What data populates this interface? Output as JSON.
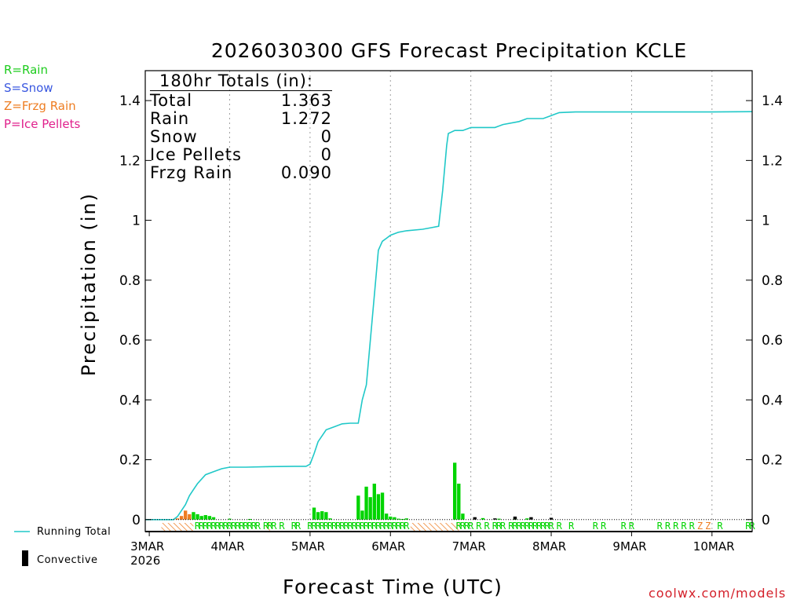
{
  "legend_types": [
    {
      "label": "R=Rain",
      "color": "#1ecc1e"
    },
    {
      "label": "S=Snow",
      "color": "#3a58e0"
    },
    {
      "label": "Z=Frzg Rain",
      "color": "#ee7d22"
    },
    {
      "label": "P=Ice Pellets",
      "color": "#e0208c"
    }
  ],
  "totals_box": {
    "header": "180hr Totals (in):",
    "rows": [
      {
        "label": "Total",
        "value": "1.363"
      },
      {
        "label": "Rain",
        "value": "1.272"
      },
      {
        "label": "Snow",
        "value": "0"
      },
      {
        "label": "Ice Pellets",
        "value": "0"
      },
      {
        "label": "Frzg Rain",
        "value": "0.090"
      }
    ]
  },
  "bottom_legend": {
    "running_total": "Running Total",
    "convective": "Convective"
  },
  "source_credit": "coolwx.com/models",
  "colors": {
    "running_total": "#20c8c8",
    "rain": "#00d400",
    "freezing_rain": "#ee7d22",
    "convective": "#000000",
    "grid": "#a0a0a0"
  },
  "chart_data": {
    "type": "bar",
    "title": "2026030300 GFS Forecast Precipitation KCLE",
    "xlabel": "Forecast Time (UTC)",
    "ylabel": "Precipitation (in)",
    "xlim_days": [
      -0.05,
      7.5
    ],
    "ylim": [
      -0.04,
      1.5
    ],
    "y_ticks": [
      0,
      0.2,
      0.4,
      0.6,
      0.8,
      1,
      1.2,
      1.4
    ],
    "y_tick_labels": [
      "0",
      "0.2",
      "0.4",
      "0.6",
      "0.8",
      "1",
      "1.2",
      "1.4"
    ],
    "x_ticks": [
      {
        "day": 0,
        "label": "3MAR",
        "sublabel": "2026"
      },
      {
        "day": 1,
        "label": "4MAR"
      },
      {
        "day": 2,
        "label": "5MAR"
      },
      {
        "day": 3,
        "label": "6MAR"
      },
      {
        "day": 4,
        "label": "7MAR"
      },
      {
        "day": 5,
        "label": "8MAR"
      },
      {
        "day": 6,
        "label": "9MAR"
      },
      {
        "day": 7,
        "label": "10MAR"
      }
    ],
    "running_total": {
      "name": "Running Total",
      "x_days": [
        -0.05,
        0.3,
        0.35,
        0.4,
        0.45,
        0.5,
        0.55,
        0.6,
        0.7,
        0.8,
        0.9,
        1.0,
        1.2,
        1.5,
        1.8,
        1.95,
        2.0,
        2.05,
        2.1,
        2.2,
        2.3,
        2.4,
        2.5,
        2.6,
        2.65,
        2.7,
        2.75,
        2.8,
        2.85,
        2.9,
        2.95,
        3.0,
        3.1,
        3.2,
        3.4,
        3.5,
        3.6,
        3.65,
        3.7,
        3.72,
        3.8,
        3.9,
        4.0,
        4.1,
        4.3,
        4.4,
        4.6,
        4.7,
        4.8,
        4.9,
        5.0,
        5.05,
        5.1,
        5.3,
        6.0,
        7.0,
        7.5
      ],
      "values": [
        0,
        0,
        0.01,
        0.03,
        0.05,
        0.08,
        0.1,
        0.12,
        0.15,
        0.16,
        0.17,
        0.175,
        0.175,
        0.177,
        0.178,
        0.178,
        0.185,
        0.22,
        0.26,
        0.3,
        0.31,
        0.32,
        0.322,
        0.322,
        0.4,
        0.45,
        0.6,
        0.75,
        0.9,
        0.93,
        0.94,
        0.95,
        0.96,
        0.965,
        0.97,
        0.975,
        0.98,
        1.1,
        1.25,
        1.29,
        1.3,
        1.3,
        1.31,
        1.31,
        1.31,
        1.32,
        1.33,
        1.34,
        1.34,
        1.34,
        1.35,
        1.355,
        1.36,
        1.362,
        1.362,
        1.362,
        1.363
      ]
    },
    "series": [
      {
        "name": "Rain",
        "type": "bar",
        "x_days": [
          0.5,
          0.55,
          0.6,
          0.65,
          0.7,
          0.75,
          0.8,
          1.0,
          1.25,
          2.05,
          2.1,
          2.15,
          2.2,
          2.25,
          2.6,
          2.65,
          2.7,
          2.75,
          2.8,
          2.85,
          2.9,
          2.95,
          3.0,
          3.05,
          3.1,
          3.15,
          3.2,
          3.8,
          3.85,
          3.9,
          4.15,
          4.35,
          4.55,
          4.7
        ],
        "values": [
          0.008,
          0.025,
          0.018,
          0.012,
          0.015,
          0.012,
          0.008,
          0.003,
          0.002,
          0.04,
          0.025,
          0.028,
          0.025,
          0.004,
          0.08,
          0.03,
          0.11,
          0.075,
          0.12,
          0.085,
          0.09,
          0.02,
          0.01,
          0.008,
          0.003,
          0.002,
          0.004,
          0.19,
          0.12,
          0.02,
          0.005,
          0.003,
          0.005,
          0.004
        ]
      },
      {
        "name": "Frzg Rain",
        "type": "bar",
        "x_days": [
          0.35,
          0.4,
          0.45,
          0.5
        ],
        "values": [
          0.004,
          0.012,
          0.03,
          0.018
        ]
      },
      {
        "name": "Convective",
        "type": "bar",
        "x_days": [
          4.05,
          4.3,
          4.55,
          4.75,
          5.0
        ],
        "values": [
          0.008,
          0.004,
          0.01,
          0.008,
          0.006
        ]
      }
    ],
    "ptype_strip": {
      "rain_marks_days": [
        0.6,
        0.65,
        0.7,
        0.75,
        0.8,
        0.85,
        0.9,
        0.95,
        1.0,
        1.05,
        1.1,
        1.15,
        1.2,
        1.25,
        1.3,
        1.35,
        1.45,
        1.5,
        1.55,
        1.65,
        1.8,
        1.85,
        2.0,
        2.05,
        2.1,
        2.15,
        2.2,
        2.25,
        2.3,
        2.35,
        2.4,
        2.45,
        2.5,
        2.55,
        2.6,
        2.65,
        2.7,
        2.75,
        2.8,
        2.85,
        2.9,
        2.95,
        3.0,
        3.05,
        3.1,
        3.15,
        3.2,
        3.85,
        3.9,
        3.95,
        4.0,
        4.1,
        4.2,
        4.3,
        4.35,
        4.4,
        4.5,
        4.55,
        4.6,
        4.65,
        4.7,
        4.75,
        4.8,
        4.85,
        4.9,
        4.95,
        5.0,
        5.1,
        5.25,
        5.55,
        5.65,
        5.9,
        6.0,
        6.35,
        6.45,
        6.55,
        6.65,
        6.75,
        7.1,
        7.45,
        7.5
      ],
      "freezing_marks_days": [
        6.85,
        6.95
      ],
      "freezing_hatch_ranges_days": [
        [
          0.15,
          0.55
        ],
        [
          1.45,
          1.5
        ],
        [
          3.25,
          3.85
        ]
      ],
      "mark_text": {
        "rain": "R",
        "freezing": "Z"
      }
    }
  }
}
